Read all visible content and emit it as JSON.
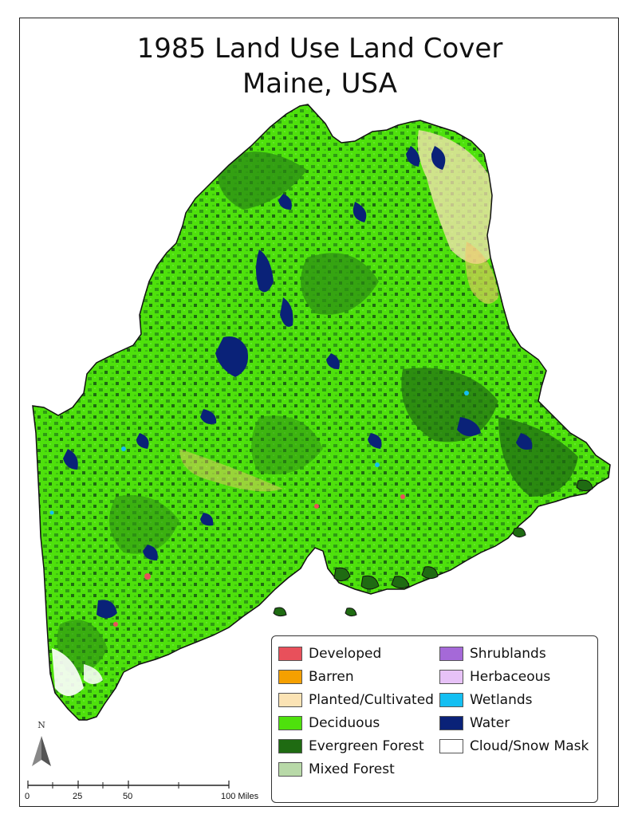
{
  "title": {
    "line1": "1985 Land Use Land Cover",
    "line2": "Maine, USA"
  },
  "legend": {
    "items": [
      {
        "label": "Developed",
        "color": "#e8505b"
      },
      {
        "label": "Barren",
        "color": "#f5a000"
      },
      {
        "label": "Planted/Cultivated",
        "color": "#fbe3b4"
      },
      {
        "label": "Deciduous",
        "color": "#4ee10c"
      },
      {
        "label": "Evergreen Forest",
        "color": "#1f6b12"
      },
      {
        "label": "Mixed Forest",
        "color": "#b8d9a8"
      },
      {
        "label": "Shrublands",
        "color": "#a569d8"
      },
      {
        "label": "Herbaceous",
        "color": "#e7c2f7"
      },
      {
        "label": "Wetlands",
        "color": "#14bff2"
      },
      {
        "label": "Water",
        "color": "#0a2278"
      },
      {
        "label": "Cloud/Snow Mask",
        "color": "#ffffff"
      }
    ]
  },
  "north_arrow": {
    "letter": "N"
  },
  "scale_bar": {
    "ticks": [
      "0",
      "25",
      "50",
      "100 Miles"
    ]
  }
}
